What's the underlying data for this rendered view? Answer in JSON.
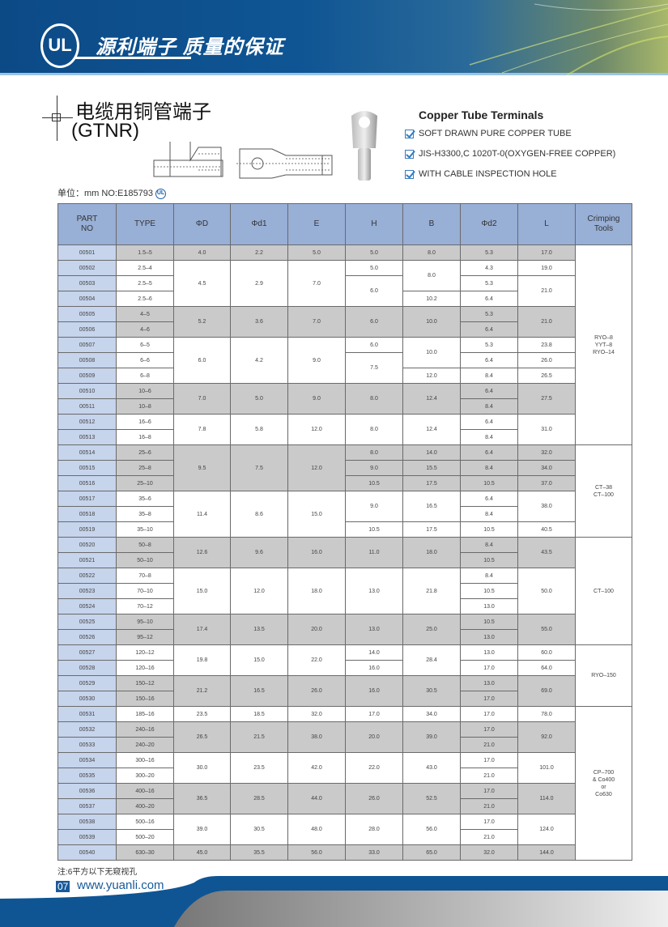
{
  "banner": {
    "logo_text": "UL",
    "slogan": "源利端子  质量的保证"
  },
  "title": {
    "cn": "电缆用铜管端子",
    "code": "(GTNR)"
  },
  "unit_line": "单位：mm   NO:E185793",
  "ul_mark": "UL",
  "product": {
    "en_title": "Copper Tube Terminals",
    "features": [
      "SOFT DRAWN PURE COPPER TUBE",
      "JIS-H3300,C 1020T-0(OXYGEN-FREE COPPER)",
      "WITH CABLE INSPECTION HOLE"
    ]
  },
  "colors": {
    "header": "#98afd6",
    "part_no": "#c6d4ec",
    "shade": "#cacaca",
    "brand": "#1a5a9a"
  },
  "table": {
    "headers": [
      "PART\nNO",
      "TYPE",
      "ΦD",
      "Φd1",
      "E",
      "H",
      "B",
      "Φd2",
      "L",
      "Crimping\nTools"
    ],
    "rows": [
      {
        "shade": true,
        "cells": [
          "00501",
          "1.5–5",
          "4.0",
          "2.2",
          "5.0",
          "5.0",
          "8.0",
          "5.3",
          "17.0",
          [
            "RYO–8\nYYT–8\nRYO–14",
            13
          ]
        ]
      },
      {
        "shade": false,
        "cells": [
          "00502",
          "2.5–4",
          [
            "4.5",
            3
          ],
          [
            "2.9",
            3
          ],
          [
            "7.0",
            3
          ],
          "5.0",
          [
            "8.0",
            2
          ],
          "4.3",
          "19.0"
        ]
      },
      {
        "shade": false,
        "cells": [
          "00503",
          "2.5–5",
          [
            "6.0",
            2
          ],
          "5.3",
          [
            "21.0",
            2
          ]
        ]
      },
      {
        "shade": false,
        "cells": [
          "00504",
          "2.5–6",
          "10.2",
          "6.4"
        ]
      },
      {
        "shade": true,
        "cells": [
          "00505",
          "4–5",
          [
            "5.2",
            2
          ],
          [
            "3.6",
            2
          ],
          [
            "7.0",
            2
          ],
          [
            "6.0",
            2
          ],
          [
            "10.0",
            2
          ],
          "5.3",
          [
            "21.0",
            2
          ]
        ]
      },
      {
        "shade": true,
        "cells": [
          "00506",
          "4–6",
          "6.4"
        ]
      },
      {
        "shade": false,
        "cells": [
          "00507",
          "6–5",
          [
            "6.0",
            3
          ],
          [
            "4.2",
            3
          ],
          [
            "9.0",
            3
          ],
          "6.0",
          [
            "10.0",
            2
          ],
          "5.3",
          "23.8"
        ]
      },
      {
        "shade": false,
        "cells": [
          "00508",
          "6–6",
          [
            "7.5",
            2
          ],
          "6.4",
          "26.0"
        ]
      },
      {
        "shade": false,
        "cells": [
          "00509",
          "6–8",
          "12.0",
          "8.4",
          "26.5"
        ]
      },
      {
        "shade": true,
        "cells": [
          "00510",
          "10–6",
          [
            "7.0",
            2
          ],
          [
            "5.0",
            2
          ],
          [
            "9.0",
            2
          ],
          [
            "8.0",
            2
          ],
          [
            "12.4",
            2
          ],
          "6.4",
          [
            "27.5",
            2
          ]
        ]
      },
      {
        "shade": true,
        "cells": [
          "00511",
          "10–8",
          "8.4"
        ]
      },
      {
        "shade": false,
        "cells": [
          "00512",
          "16–6",
          [
            "7.8",
            2
          ],
          [
            "5.8",
            2
          ],
          [
            "12.0",
            2
          ],
          [
            "8.0",
            2
          ],
          [
            "12.4",
            2
          ],
          "6.4",
          [
            "31.0",
            2
          ]
        ]
      },
      {
        "shade": false,
        "cells": [
          "00513",
          "16–8",
          "8.4"
        ]
      },
      {
        "shade": true,
        "cells": [
          "00514",
          "25–6",
          [
            "9.5",
            3
          ],
          [
            "7.5",
            3
          ],
          [
            "12.0",
            3
          ],
          "8.0",
          "14.0",
          "6.4",
          "32.0",
          [
            "CT–38\nCT–100",
            6
          ]
        ]
      },
      {
        "shade": true,
        "cells": [
          "00515",
          "25–8",
          "9.0",
          "15.5",
          "8.4",
          "34.0"
        ]
      },
      {
        "shade": true,
        "cells": [
          "00516",
          "25–10",
          "10.5",
          "17.5",
          "10.5",
          "37.0"
        ]
      },
      {
        "shade": false,
        "cells": [
          "00517",
          "35–6",
          [
            "11.4",
            3
          ],
          [
            "8.6",
            3
          ],
          [
            "15.0",
            3
          ],
          [
            "9.0",
            2
          ],
          [
            "16.5",
            2
          ],
          "6.4",
          [
            "38.0",
            2
          ]
        ]
      },
      {
        "shade": false,
        "cells": [
          "00518",
          "35–8",
          "8.4"
        ]
      },
      {
        "shade": false,
        "cells": [
          "00519",
          "35–10",
          "10.5",
          "17.5",
          "10.5",
          "40.5"
        ]
      },
      {
        "shade": true,
        "cells": [
          "00520",
          "50–8",
          [
            "12.6",
            2
          ],
          [
            "9.6",
            2
          ],
          [
            "16.0",
            2
          ],
          [
            "11.0",
            2
          ],
          [
            "18.0",
            2
          ],
          "8.4",
          [
            "43.5",
            2
          ],
          [
            "CT–100",
            7
          ]
        ]
      },
      {
        "shade": true,
        "cells": [
          "00521",
          "50–10",
          "10.5"
        ]
      },
      {
        "shade": false,
        "cells": [
          "00522",
          "70–8",
          [
            "15.0",
            3
          ],
          [
            "12.0",
            3
          ],
          [
            "18.0",
            3
          ],
          [
            "13.0",
            3
          ],
          [
            "21.8",
            3
          ],
          "8.4",
          [
            "50.0",
            3
          ]
        ]
      },
      {
        "shade": false,
        "cells": [
          "00523",
          "70–10",
          "10.5"
        ]
      },
      {
        "shade": false,
        "cells": [
          "00524",
          "70–12",
          "13.0"
        ]
      },
      {
        "shade": true,
        "cells": [
          "00525",
          "95–10",
          [
            "17.4",
            2
          ],
          [
            "13.5",
            2
          ],
          [
            "20.0",
            2
          ],
          [
            "13.0",
            2
          ],
          [
            "25.0",
            2
          ],
          "10.5",
          [
            "55.0",
            2
          ]
        ]
      },
      {
        "shade": true,
        "cells": [
          "00526",
          "95–12",
          "13.0"
        ]
      },
      {
        "shade": false,
        "cells": [
          "00527",
          "120–12",
          [
            "19.8",
            2
          ],
          [
            "15.0",
            2
          ],
          [
            "22.0",
            2
          ],
          "14.0",
          [
            "28.4",
            2
          ],
          "13.0",
          "60.0",
          [
            "RYO–150",
            4
          ]
        ]
      },
      {
        "shade": false,
        "cells": [
          "00528",
          "120–16",
          "16.0",
          "17.0",
          "64.0"
        ]
      },
      {
        "shade": true,
        "cells": [
          "00529",
          "150–12",
          [
            "21.2",
            2
          ],
          [
            "16.5",
            2
          ],
          [
            "26.0",
            2
          ],
          [
            "16.0",
            2
          ],
          [
            "30.5",
            2
          ],
          "13.0",
          [
            "69.0",
            2
          ]
        ]
      },
      {
        "shade": true,
        "cells": [
          "00530",
          "150–16",
          "17.0"
        ]
      },
      {
        "shade": false,
        "cells": [
          "00531",
          "185–16",
          "23.5",
          "18.5",
          "32.0",
          "17.0",
          "34.0",
          "17.0",
          "78.0",
          [
            "CP–700\n& Co400\nor\nCo630",
            10
          ]
        ]
      },
      {
        "shade": true,
        "cells": [
          "00532",
          "240–16",
          [
            "26.5",
            2
          ],
          [
            "21.5",
            2
          ],
          [
            "38.0",
            2
          ],
          [
            "20.0",
            2
          ],
          [
            "39.0",
            2
          ],
          "17.0",
          [
            "92.0",
            2
          ]
        ]
      },
      {
        "shade": true,
        "cells": [
          "00533",
          "240–20",
          "21.0"
        ]
      },
      {
        "shade": false,
        "cells": [
          "00534",
          "300–16",
          [
            "30.0",
            2
          ],
          [
            "23.5",
            2
          ],
          [
            "42.0",
            2
          ],
          [
            "22.0",
            2
          ],
          [
            "43.0",
            2
          ],
          "17.0",
          [
            "101.0",
            2
          ]
        ]
      },
      {
        "shade": false,
        "cells": [
          "00535",
          "300–20",
          "21.0"
        ]
      },
      {
        "shade": true,
        "cells": [
          "00536",
          "400–16",
          [
            "36.5",
            2
          ],
          [
            "28.5",
            2
          ],
          [
            "44.0",
            2
          ],
          [
            "26.0",
            2
          ],
          [
            "52.5",
            2
          ],
          "17.0",
          [
            "114.0",
            2
          ]
        ]
      },
      {
        "shade": true,
        "cells": [
          "00537",
          "400–20",
          "21.0"
        ]
      },
      {
        "shade": false,
        "cells": [
          "00538",
          "500–16",
          [
            "39.0",
            2
          ],
          [
            "30.5",
            2
          ],
          [
            "48.0",
            2
          ],
          [
            "28.0",
            2
          ],
          [
            "56.0",
            2
          ],
          "17.0",
          [
            "124.0",
            2
          ]
        ]
      },
      {
        "shade": false,
        "cells": [
          "00539",
          "500–20",
          "21.0"
        ]
      },
      {
        "shade": true,
        "cells": [
          "00540",
          "630–30",
          "45.0",
          "35.5",
          "56.0",
          "33.0",
          "65.0",
          "32.0",
          "144.0"
        ]
      }
    ]
  },
  "note": "注:6平方以下无窥视孔",
  "footer": {
    "page": "07",
    "website": "www.yuanli.com"
  }
}
